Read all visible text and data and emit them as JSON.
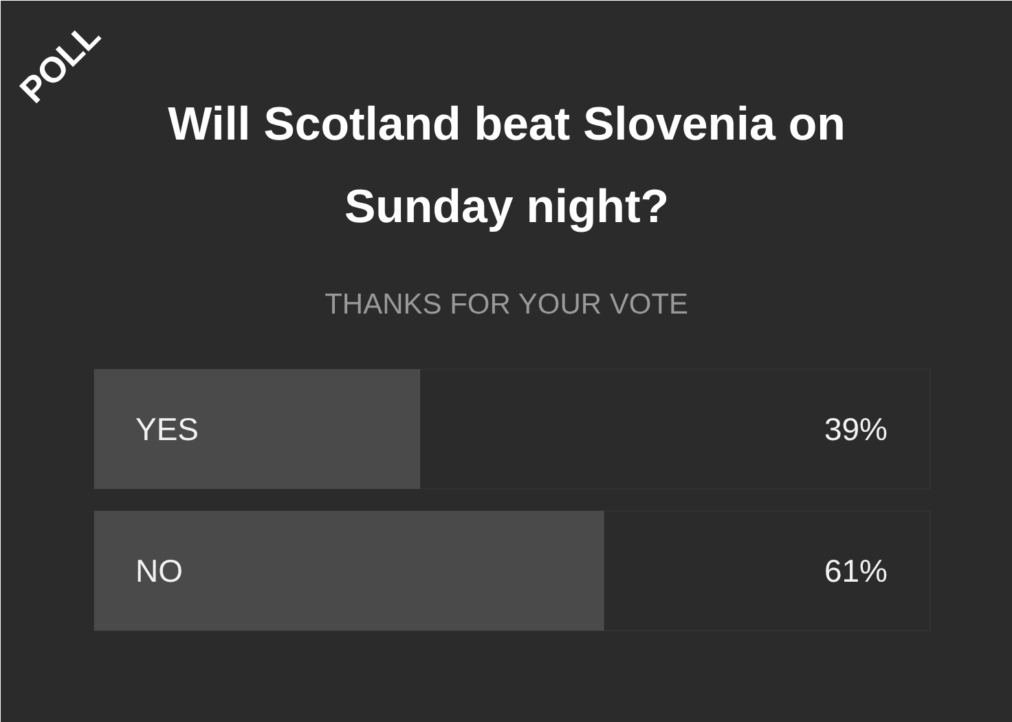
{
  "chart_data": {
    "type": "bar",
    "orientation": "horizontal",
    "title": "Will Scotland beat Slovenia on Sunday night?",
    "subtitle": "THANKS FOR YOUR VOTE",
    "annotations": [
      "POLL"
    ],
    "categories": [
      "YES",
      "NO"
    ],
    "values": [
      39,
      61
    ],
    "color": "#4a4a4a",
    "value_labels": [
      "39%",
      "61%"
    ]
  }
}
